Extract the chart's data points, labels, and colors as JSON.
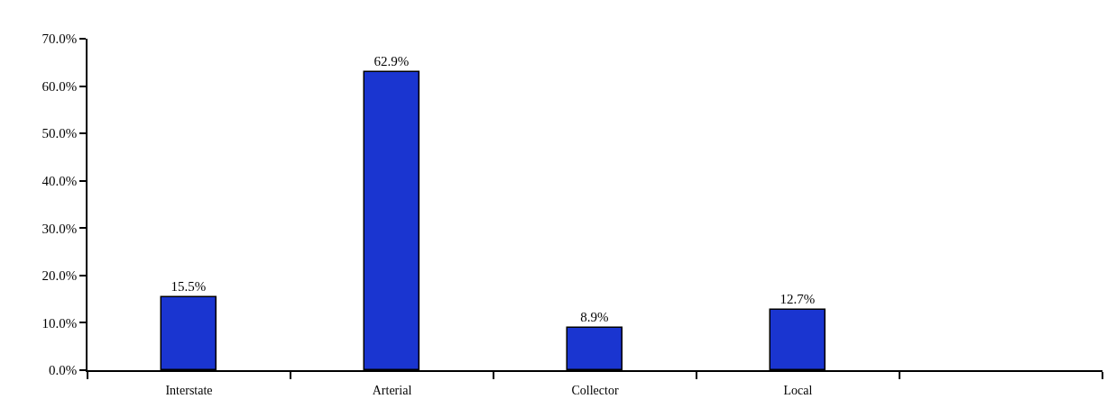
{
  "chart_data": {
    "type": "bar",
    "categories": [
      "Interstate",
      "Arterial",
      "Collector",
      "Local",
      null
    ],
    "values": [
      15.5,
      62.9,
      8.9,
      12.7,
      null
    ],
    "value_labels": [
      "15.5%",
      "62.9%",
      "8.9%",
      "12.7%",
      null
    ],
    "color": "#1a35d0",
    "ylim": [
      0,
      70
    ],
    "yticks": [
      {
        "value": 0,
        "label": "0.0%"
      },
      {
        "value": 10,
        "label": "10.0%"
      },
      {
        "value": 20,
        "label": "20.0%"
      },
      {
        "value": 30,
        "label": "30.0%"
      },
      {
        "value": 40,
        "label": "40.0%"
      },
      {
        "value": 50,
        "label": "50.0%"
      },
      {
        "value": 60,
        "label": "60.0%"
      },
      {
        "value": 70,
        "label": "70.0%"
      }
    ],
    "legend": false
  }
}
